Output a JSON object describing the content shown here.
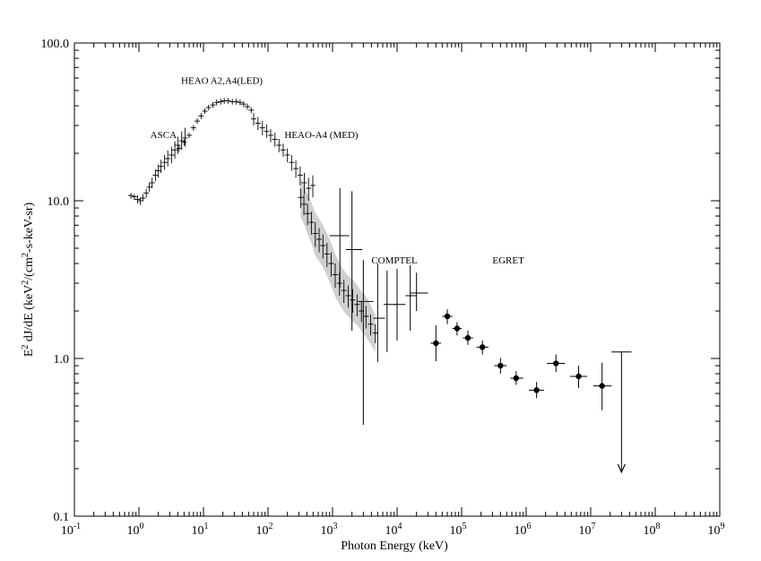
{
  "chart_data": {
    "type": "scatter",
    "xlabel": "Photon Energy (keV)",
    "ylabel_main": "E",
    "ylabel_sup": "2",
    "ylabel_rest": " dJ/dE (keV",
    "ylabel_sup2": "2",
    "ylabel_rest2": "/(cm",
    "ylabel_sup3": "2",
    "ylabel_rest3": "-s-keV-sr)",
    "x_scale": "log",
    "y_scale": "log",
    "xlim": [
      0.1,
      1000000000
    ],
    "ylim": [
      0.1,
      100
    ],
    "x_ticks": [
      {
        "base": "10",
        "exp": "-1",
        "value": 0.1
      },
      {
        "base": "10",
        "exp": "0",
        "value": 1
      },
      {
        "base": "10",
        "exp": "1",
        "value": 10
      },
      {
        "base": "10",
        "exp": "2",
        "value": 100
      },
      {
        "base": "10",
        "exp": "3",
        "value": 1000
      },
      {
        "base": "10",
        "exp": "4",
        "value": 10000
      },
      {
        "base": "10",
        "exp": "5",
        "value": 100000
      },
      {
        "base": "10",
        "exp": "6",
        "value": 1000000
      },
      {
        "base": "10",
        "exp": "7",
        "value": 10000000
      },
      {
        "base": "10",
        "exp": "8",
        "value": 100000000
      },
      {
        "base": "10",
        "exp": "9",
        "value": 1000000000
      }
    ],
    "y_ticks": [
      {
        "label": "0.1",
        "value": 0.1
      },
      {
        "label": "1.0",
        "value": 1
      },
      {
        "label": "10.0",
        "value": 10
      },
      {
        "label": "100.0",
        "value": 100
      }
    ],
    "annotations": [
      {
        "text": "HEAO A2,A4(LED)",
        "x": 4.5,
        "y": 55
      },
      {
        "text": "ASCA",
        "x": 1.5,
        "y": 25
      },
      {
        "text": "HEAO-A4 (MED)",
        "x": 180,
        "y": 25
      },
      {
        "text": "COMPTEL",
        "x": 4000,
        "y": 4.0
      },
      {
        "text": "EGRET",
        "x": 300000,
        "y": 4.0
      }
    ],
    "series": [
      {
        "marker": "errorbar",
        "points": [
          {
            "x": 0.75,
            "y": 10.8,
            "ylo": 10.3,
            "yhi": 11.2
          },
          {
            "x": 0.85,
            "y": 10.6,
            "ylo": 10.1,
            "yhi": 11.0
          },
          {
            "x": 0.95,
            "y": 10.2,
            "ylo": 9.6,
            "yhi": 10.8
          },
          {
            "x": 1.05,
            "y": 10.0,
            "ylo": 9.4,
            "yhi": 10.5
          },
          {
            "x": 1.15,
            "y": 10.4,
            "ylo": 9.9,
            "yhi": 11.0
          },
          {
            "x": 1.3,
            "y": 11.2,
            "ylo": 10.5,
            "yhi": 11.9
          },
          {
            "x": 1.45,
            "y": 12.2,
            "ylo": 11.4,
            "yhi": 13.0
          },
          {
            "x": 1.6,
            "y": 13.0,
            "ylo": 12.0,
            "yhi": 14.0
          },
          {
            "x": 1.8,
            "y": 14.5,
            "ylo": 13.3,
            "yhi": 15.8
          },
          {
            "x": 2.0,
            "y": 15.5,
            "ylo": 14.0,
            "yhi": 17.0
          },
          {
            "x": 2.2,
            "y": 16.5,
            "ylo": 15.0,
            "yhi": 18.2
          },
          {
            "x": 2.5,
            "y": 17.5,
            "ylo": 15.7,
            "yhi": 19.5
          },
          {
            "x": 2.8,
            "y": 18.5,
            "ylo": 16.5,
            "yhi": 20.8
          },
          {
            "x": 3.2,
            "y": 19.5,
            "ylo": 17.3,
            "yhi": 22.0
          },
          {
            "x": 3.6,
            "y": 21.0,
            "ylo": 18.5,
            "yhi": 23.8
          },
          {
            "x": 4.0,
            "y": 22.5,
            "ylo": 19.8,
            "yhi": 25.5
          },
          {
            "x": 4.6,
            "y": 24.0,
            "ylo": 21.0,
            "yhi": 27.5
          },
          {
            "x": 5.2,
            "y": 25.0,
            "ylo": 22.0,
            "yhi": 29.0
          }
        ]
      },
      {
        "marker": "errorbar",
        "points": [
          {
            "x": 4.2,
            "y": 21.5,
            "ylo": 20.5,
            "yhi": 22.5
          },
          {
            "x": 5.0,
            "y": 23.5,
            "ylo": 22.5,
            "yhi": 24.5
          },
          {
            "x": 6.0,
            "y": 26.0,
            "ylo": 25.0,
            "yhi": 27.0
          },
          {
            "x": 7.0,
            "y": 29.0,
            "ylo": 27.8,
            "yhi": 30.2
          },
          {
            "x": 8.0,
            "y": 32.0,
            "ylo": 30.7,
            "yhi": 33.3
          },
          {
            "x": 9.2,
            "y": 34.5,
            "ylo": 33.0,
            "yhi": 36.0
          },
          {
            "x": 10.5,
            "y": 37.0,
            "ylo": 35.5,
            "yhi": 38.5
          },
          {
            "x": 12.0,
            "y": 39.0,
            "ylo": 37.4,
            "yhi": 40.6
          },
          {
            "x": 14.0,
            "y": 40.5,
            "ylo": 38.8,
            "yhi": 42.2
          },
          {
            "x": 16.0,
            "y": 42.0,
            "ylo": 40.2,
            "yhi": 43.8
          },
          {
            "x": 18.5,
            "y": 42.5,
            "ylo": 40.7,
            "yhi": 44.3
          },
          {
            "x": 21.0,
            "y": 43.0,
            "ylo": 41.2,
            "yhi": 44.8
          },
          {
            "x": 24.0,
            "y": 43.0,
            "ylo": 41.2,
            "yhi": 44.8
          },
          {
            "x": 28.0,
            "y": 42.5,
            "ylo": 40.7,
            "yhi": 44.3
          },
          {
            "x": 32.0,
            "y": 42.5,
            "ylo": 40.7,
            "yhi": 44.3
          },
          {
            "x": 37.0,
            "y": 42.0,
            "ylo": 40.2,
            "yhi": 43.8
          },
          {
            "x": 42.0,
            "y": 41.0,
            "ylo": 39.3,
            "yhi": 42.7
          },
          {
            "x": 48.0,
            "y": 39.5,
            "ylo": 37.8,
            "yhi": 41.2
          },
          {
            "x": 55.0,
            "y": 37.5,
            "ylo": 35.9,
            "yhi": 39.1
          }
        ]
      },
      {
        "marker": "errorbar",
        "points": [
          {
            "x": 60,
            "y": 33.0,
            "ylo": 30.0,
            "yhi": 36.0
          },
          {
            "x": 70,
            "y": 31.0,
            "ylo": 28.0,
            "yhi": 34.0
          },
          {
            "x": 82,
            "y": 29.0,
            "ylo": 26.0,
            "yhi": 32.0
          },
          {
            "x": 95,
            "y": 27.5,
            "ylo": 25.0,
            "yhi": 30.5
          },
          {
            "x": 110,
            "y": 26.0,
            "ylo": 23.5,
            "yhi": 28.5
          },
          {
            "x": 128,
            "y": 24.5,
            "ylo": 22.0,
            "yhi": 27.0
          },
          {
            "x": 148,
            "y": 22.5,
            "ylo": 20.3,
            "yhi": 24.7
          },
          {
            "x": 172,
            "y": 21.0,
            "ylo": 19.0,
            "yhi": 23.0
          },
          {
            "x": 200,
            "y": 19.5,
            "ylo": 17.5,
            "yhi": 21.5
          },
          {
            "x": 232,
            "y": 17.5,
            "ylo": 15.5,
            "yhi": 19.5
          },
          {
            "x": 270,
            "y": 16.0,
            "ylo": 14.0,
            "yhi": 18.0
          },
          {
            "x": 315,
            "y": 14.5,
            "ylo": 12.5,
            "yhi": 16.5
          },
          {
            "x": 365,
            "y": 13.0,
            "ylo": 11.0,
            "yhi": 15.0
          },
          {
            "x": 425,
            "y": 12.0,
            "ylo": 10.0,
            "yhi": 14.0
          },
          {
            "x": 495,
            "y": 12.5,
            "ylo": 10.5,
            "yhi": 14.5
          }
        ]
      },
      {
        "marker": "errorbar",
        "band": true,
        "points": [
          {
            "x": 320,
            "y": 10.5,
            "ylo": 9.0,
            "yhi": 12.0
          },
          {
            "x": 360,
            "y": 9.5,
            "ylo": 8.1,
            "yhi": 10.9
          },
          {
            "x": 410,
            "y": 8.3,
            "ylo": 7.0,
            "yhi": 9.6
          },
          {
            "x": 470,
            "y": 7.3,
            "ylo": 6.1,
            "yhi": 8.5
          },
          {
            "x": 540,
            "y": 6.2,
            "ylo": 5.1,
            "yhi": 7.3
          },
          {
            "x": 620,
            "y": 5.7,
            "ylo": 4.7,
            "yhi": 6.7
          },
          {
            "x": 710,
            "y": 5.2,
            "ylo": 4.3,
            "yhi": 6.1
          },
          {
            "x": 820,
            "y": 4.6,
            "ylo": 3.8,
            "yhi": 5.4
          },
          {
            "x": 950,
            "y": 4.0,
            "ylo": 3.3,
            "yhi": 4.7
          },
          {
            "x": 1100,
            "y": 3.4,
            "ylo": 2.8,
            "yhi": 4.0
          },
          {
            "x": 1280,
            "y": 3.0,
            "ylo": 2.5,
            "yhi": 3.5
          },
          {
            "x": 1500,
            "y": 2.7,
            "ylo": 2.25,
            "yhi": 3.15
          },
          {
            "x": 1750,
            "y": 2.5,
            "ylo": 2.1,
            "yhi": 2.9
          },
          {
            "x": 2050,
            "y": 2.35,
            "ylo": 1.95,
            "yhi": 2.75
          },
          {
            "x": 2400,
            "y": 2.2,
            "ylo": 1.85,
            "yhi": 2.55
          },
          {
            "x": 2800,
            "y": 2.0,
            "ylo": 1.7,
            "yhi": 2.3
          },
          {
            "x": 3300,
            "y": 1.85,
            "ylo": 1.55,
            "yhi": 2.15
          },
          {
            "x": 3900,
            "y": 1.65,
            "ylo": 1.4,
            "yhi": 1.9
          },
          {
            "x": 4600,
            "y": 1.45,
            "ylo": 1.25,
            "yhi": 1.65
          }
        ]
      },
      {
        "marker": "cross",
        "points": [
          {
            "x": 1300,
            "y": 6.0,
            "xlo": 900,
            "xhi": 1800,
            "ylo": 2.8,
            "yhi": 12.0
          },
          {
            "x": 2000,
            "y": 4.9,
            "xlo": 1600,
            "xhi": 2900,
            "ylo": 1.5,
            "yhi": 11.5
          },
          {
            "x": 3000,
            "y": 2.3,
            "xlo": 2500,
            "xhi": 4300,
            "ylo": 0.38,
            "yhi": 4.2
          },
          {
            "x": 5000,
            "y": 1.8,
            "xlo": 4300,
            "xhi": 6500,
            "ylo": 0.95,
            "yhi": 4.0
          },
          {
            "x": 7000,
            "y": 2.2,
            "xlo": 6200,
            "xhi": 9500,
            "ylo": 1.1,
            "yhi": 3.6
          },
          {
            "x": 10000,
            "y": 2.2,
            "xlo": 9000,
            "xhi": 13500,
            "ylo": 1.3,
            "yhi": 3.7
          },
          {
            "x": 16000,
            "y": 2.5,
            "xlo": 13500,
            "xhi": 20000,
            "ylo": 1.5,
            "yhi": 3.9
          },
          {
            "x": 20000,
            "y": 2.6,
            "xlo": 16000,
            "xhi": 30000,
            "ylo": 2.0,
            "yhi": 3.5
          }
        ]
      },
      {
        "marker": "dot",
        "points": [
          {
            "x": 40000,
            "y": 1.25,
            "xlo": 33000,
            "xhi": 48000,
            "ylo": 0.96,
            "yhi": 1.62
          },
          {
            "x": 60000,
            "y": 1.85,
            "xlo": 50000,
            "xhi": 72000,
            "ylo": 1.65,
            "yhi": 2.05
          },
          {
            "x": 85000,
            "y": 1.55,
            "xlo": 72000,
            "xhi": 100000,
            "ylo": 1.4,
            "yhi": 1.7
          },
          {
            "x": 125000,
            "y": 1.35,
            "xlo": 105000,
            "xhi": 150000,
            "ylo": 1.22,
            "yhi": 1.5
          },
          {
            "x": 210000,
            "y": 1.18,
            "xlo": 170000,
            "xhi": 260000,
            "ylo": 1.06,
            "yhi": 1.3
          },
          {
            "x": 400000,
            "y": 0.9,
            "xlo": 320000,
            "xhi": 500000,
            "ylo": 0.8,
            "yhi": 1.01
          },
          {
            "x": 700000,
            "y": 0.75,
            "xlo": 570000,
            "xhi": 900000,
            "ylo": 0.68,
            "yhi": 0.83
          },
          {
            "x": 1450000,
            "y": 0.63,
            "xlo": 1100000,
            "xhi": 1900000,
            "ylo": 0.56,
            "yhi": 0.71
          },
          {
            "x": 2900000,
            "y": 0.93,
            "xlo": 2100000,
            "xhi": 4000000,
            "ylo": 0.82,
            "yhi": 1.06
          },
          {
            "x": 6500000,
            "y": 0.77,
            "xlo": 4800000,
            "xhi": 8800000,
            "ylo": 0.65,
            "yhi": 0.9
          },
          {
            "x": 15000000,
            "y": 0.67,
            "xlo": 11000000,
            "xhi": 21000000,
            "ylo": 0.47,
            "yhi": 0.94
          }
        ]
      },
      {
        "marker": "upper-limit",
        "points": [
          {
            "x": 30000000,
            "y": 1.1,
            "xlo": 21000000,
            "xhi": 43000000,
            "yto": 0.19
          }
        ]
      }
    ]
  }
}
